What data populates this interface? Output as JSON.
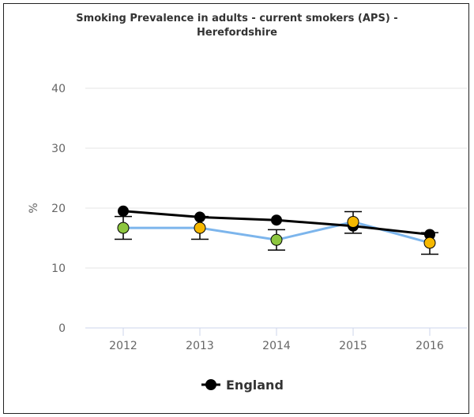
{
  "chart_data": {
    "type": "line",
    "title_line1": "Smoking Prevalence in adults - current smokers (APS) -",
    "title_line2": "Herefordshire",
    "ylabel": "%",
    "xlabel": "",
    "categories": [
      "2012",
      "2013",
      "2014",
      "2015",
      "2016"
    ],
    "yticks": [
      "0",
      "10",
      "20",
      "30",
      "40"
    ],
    "ylim": [
      0,
      45
    ],
    "grid": true,
    "legend_position": "bottom-center",
    "legend": [
      "England"
    ],
    "series": [
      {
        "name": "England",
        "color": "#000000",
        "marker_color": "#000000",
        "values": [
          19.5,
          18.5,
          18.0,
          17.0,
          15.6
        ]
      },
      {
        "color": "#7cb5ec",
        "values": [
          16.7,
          16.7,
          14.7,
          17.7,
          14.2
        ],
        "ci_lower": [
          14.8,
          14.8,
          13.0,
          15.8,
          12.3
        ],
        "ci_upper": [
          18.6,
          18.6,
          16.4,
          19.4,
          15.9
        ],
        "marker_colors": [
          "#8dc63f",
          "#f5b800",
          "#8dc63f",
          "#f5b800",
          "#f5b800"
        ]
      }
    ]
  }
}
